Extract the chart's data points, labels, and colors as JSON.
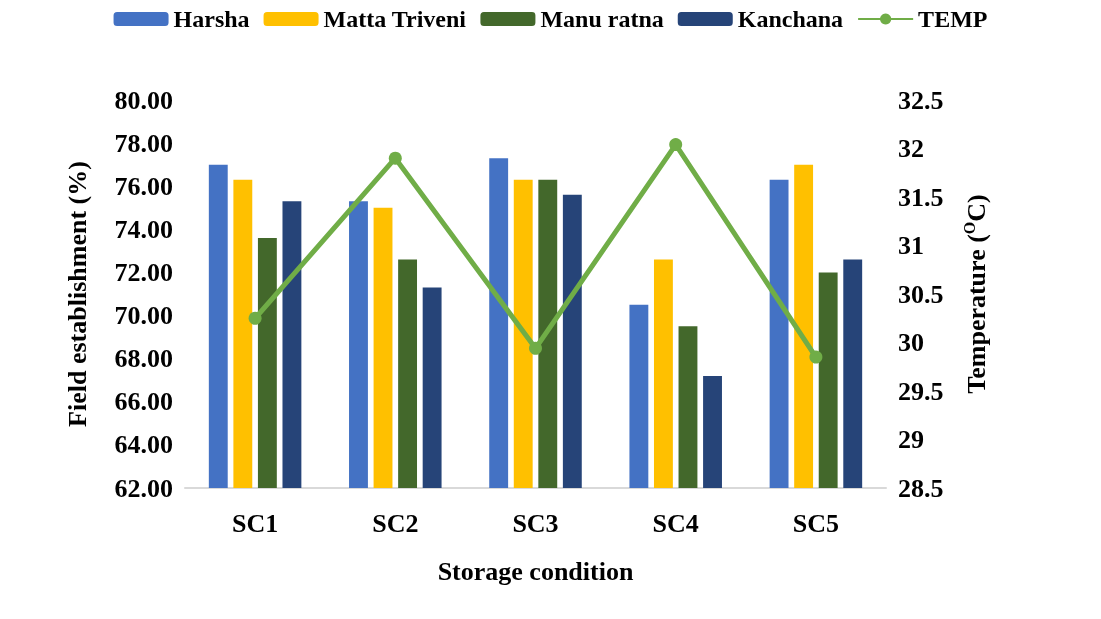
{
  "chart_data": {
    "type": "bar",
    "xlabel": "Storage condition",
    "ylabel": "Field establishment (%)",
    "y2label": "Temperature ($^{O}$C)",
    "categories": [
      "SC1",
      "SC2",
      "SC3",
      "SC4",
      "SC5"
    ],
    "series": [
      {
        "name": "Harsha",
        "color": "#4472c4",
        "values": [
          77.0,
          75.3,
          77.3,
          70.5,
          76.3
        ]
      },
      {
        "name": "Matta Triveni",
        "color": "#ffc000",
        "values": [
          76.3,
          75.0,
          76.3,
          72.6,
          77.0
        ]
      },
      {
        "name": "Manu ratna",
        "color": "#43682b",
        "values": [
          73.6,
          72.6,
          76.3,
          69.5,
          72.0
        ]
      },
      {
        "name": "Kanchana",
        "color": "#264478",
        "values": [
          75.3,
          71.3,
          75.6,
          67.2,
          72.6
        ]
      },
      {
        "name": "TEMP",
        "type": "line",
        "axis": "y2",
        "color": "#70ad47",
        "values": [
          30.25,
          31.9,
          29.94,
          32.04,
          29.85
        ]
      }
    ],
    "ylim": [
      62,
      80
    ],
    "yticks": [
      {
        "value": 62,
        "label": "62.00"
      },
      {
        "value": 64,
        "label": "64.00"
      },
      {
        "value": 66,
        "label": "66.00"
      },
      {
        "value": 68,
        "label": "68.00"
      },
      {
        "value": 70,
        "label": "70.00"
      },
      {
        "value": 72,
        "label": "72.00"
      },
      {
        "value": 74,
        "label": "74.00"
      },
      {
        "value": 76,
        "label": "76.00"
      },
      {
        "value": 78,
        "label": "78.00"
      },
      {
        "value": 80,
        "label": "80.00"
      }
    ],
    "y2lim": [
      28.5,
      32.5
    ],
    "y2ticks": [
      28.5,
      29,
      29.5,
      30,
      30.5,
      31,
      31.5,
      32,
      32.5
    ],
    "grid": false,
    "legend": "top",
    "marker": "circle",
    "line_style": "solid"
  }
}
